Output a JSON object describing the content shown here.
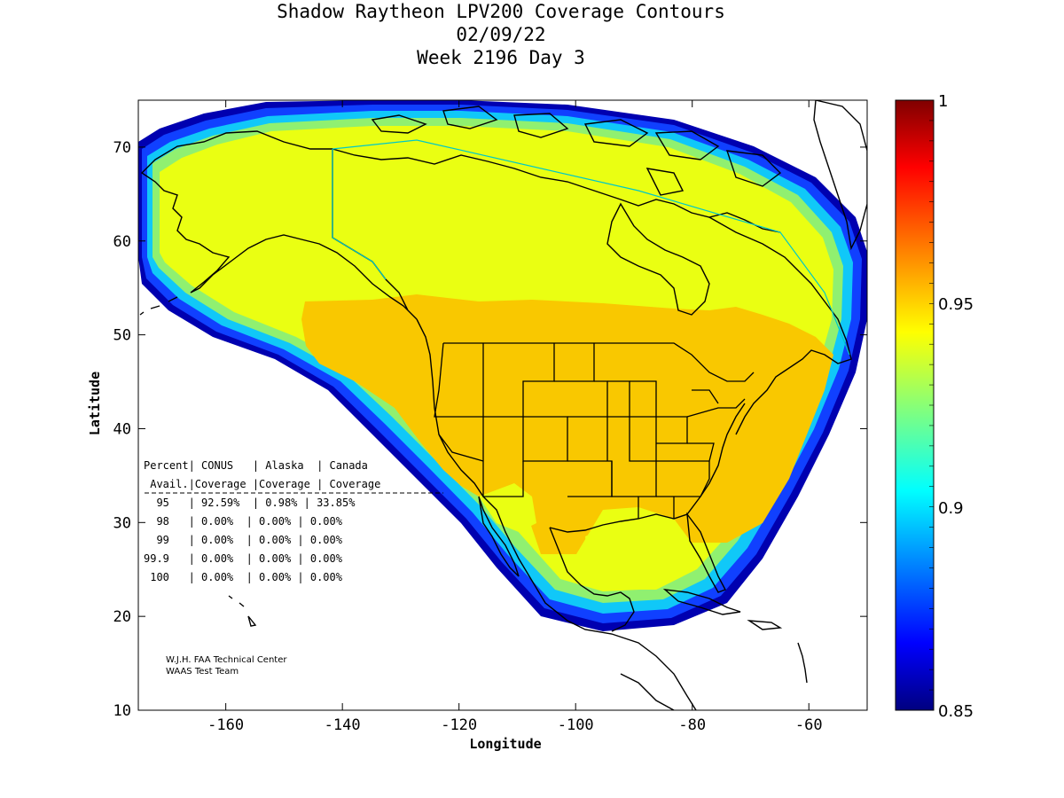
{
  "title": {
    "line1": "Shadow Raytheon LPV200 Coverage Contours",
    "line2": "02/09/22",
    "line3": "Week 2196 Day 3"
  },
  "axes": {
    "xlabel": "Longitude",
    "ylabel": "Latitude",
    "xlim": [
      -175,
      -50
    ],
    "ylim": [
      10,
      75
    ],
    "xticks": [
      "-160",
      "-140",
      "-120",
      "-100",
      "-80",
      "-60"
    ],
    "yticks": [
      "10",
      "20",
      "30",
      "40",
      "50",
      "60",
      "70"
    ]
  },
  "colorbar": {
    "range": [
      0.85,
      1
    ],
    "labels": [
      "1",
      "0.95",
      "0.9",
      "0.85"
    ],
    "colormap": "jet"
  },
  "coverage_table": {
    "header1": "Percent| CONUS   | Alaska  | Canada",
    "header2": " Avail.|Coverage |Coverage | Coverage",
    "rows": [
      "  95   | 92.59%  | 0.98% | 33.85%",
      "  98   | 0.00%  | 0.00% | 0.00%",
      "  99   | 0.00%  | 0.00% | 0.00%",
      "99.9   | 0.00%  | 0.00% | 0.00%",
      " 100   | 0.00%  | 0.00% | 0.00%"
    ]
  },
  "credit": {
    "line1": "W.J.H. FAA Technical Center",
    "line2": "WAAS Test Team"
  },
  "colors": {
    "high_95": "#f9c800",
    "yellow": "#eaff12",
    "green": "#90f570",
    "cyan": "#18d8f0",
    "blue": "#0a5cf0",
    "navy": "#0000b0",
    "coast": "#000000"
  }
}
